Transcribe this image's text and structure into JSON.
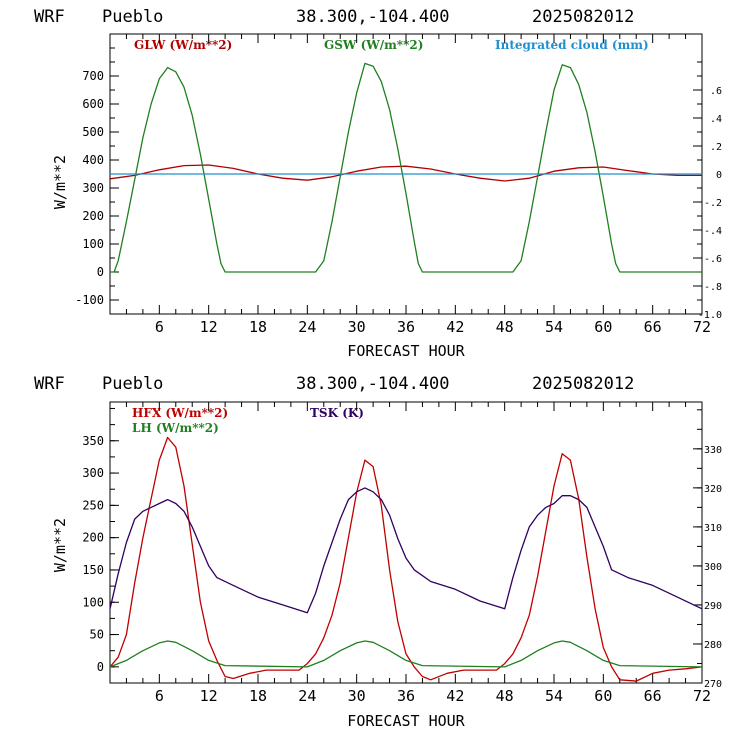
{
  "panels": [
    {
      "header": {
        "model": "WRF",
        "station": "Pueblo",
        "coords": "38.300,-104.400",
        "run": "2025082012"
      },
      "xlabel": "FORECAST HOUR",
      "ylabel": "W/m**2",
      "legend": [
        {
          "text": "GLW (W/m**2)",
          "color": "#b00000"
        },
        {
          "text": "GSW (W/m**2)",
          "color": "#208020"
        },
        {
          "text": "Integrated cloud (mm)",
          "color": "#1e90d0"
        }
      ],
      "left_ticks": [
        "-100",
        "0",
        "100",
        "200",
        "300",
        "400",
        "500",
        "600",
        "700"
      ],
      "right_ticks": [
        ".6",
        ".4",
        ".2",
        "0",
        "-.2",
        "-.4",
        "-.6",
        "-.8",
        "-1.0"
      ],
      "x_ticks": [
        "6",
        "12",
        "18",
        "24",
        "30",
        "36",
        "42",
        "48",
        "54",
        "60",
        "66",
        "72"
      ]
    },
    {
      "header": {
        "model": "WRF",
        "station": "Pueblo",
        "coords": "38.300,-104.400",
        "run": "2025082012"
      },
      "xlabel": "FORECAST HOUR",
      "ylabel": "W/m**2",
      "legend": [
        {
          "text": "HFX (W/m**2)",
          "color": "#c00000"
        },
        {
          "text": "LH  (W/m**2)",
          "color": "#208020"
        },
        {
          "text": "TSK (K)",
          "color": "#300060"
        }
      ],
      "left_ticks": [
        "0",
        "50",
        "100",
        "150",
        "200",
        "250",
        "300",
        "350"
      ],
      "right_ticks": [
        "270",
        "280",
        "290",
        "300",
        "310",
        "320",
        "330"
      ],
      "x_ticks": [
        "6",
        "12",
        "18",
        "24",
        "30",
        "36",
        "42",
        "48",
        "54",
        "60",
        "66",
        "72"
      ]
    }
  ],
  "chart_data": [
    {
      "type": "line",
      "xlabel": "FORECAST HOUR",
      "ylabel": "W/m**2",
      "xlim": [
        0,
        72
      ],
      "ylim": [
        -150,
        850
      ],
      "y2lim": [
        -1.0,
        1.0
      ],
      "series": [
        {
          "name": "GLW (W/m**2)",
          "color": "#b00000",
          "axis": "left",
          "x": [
            0,
            3,
            6,
            9,
            12,
            15,
            18,
            21,
            24,
            27,
            30,
            33,
            36,
            39,
            42,
            45,
            48,
            51,
            54,
            57,
            60,
            63,
            66,
            69,
            72
          ],
          "y": [
            333,
            345,
            365,
            380,
            382,
            370,
            350,
            335,
            328,
            340,
            360,
            375,
            378,
            368,
            350,
            335,
            325,
            335,
            360,
            372,
            375,
            362,
            350,
            345,
            345
          ]
        },
        {
          "name": "GSW (W/m**2)",
          "color": "#208020",
          "axis": "left",
          "x": [
            0,
            0.5,
            1,
            2,
            3,
            4,
            5,
            6,
            7,
            8,
            9,
            10,
            11,
            12,
            13,
            13.5,
            14,
            20,
            25,
            26,
            27,
            28,
            29,
            30,
            31,
            32,
            33,
            34,
            35,
            36,
            37,
            37.5,
            38,
            44,
            49,
            50,
            51,
            52,
            53,
            54,
            55,
            56,
            57,
            58,
            59,
            60,
            61,
            61.5,
            62,
            72
          ],
          "y": [
            0,
            0,
            40,
            180,
            330,
            480,
            600,
            690,
            730,
            715,
            660,
            560,
            420,
            260,
            100,
            30,
            0,
            0,
            0,
            40,
            180,
            340,
            500,
            640,
            745,
            735,
            680,
            580,
            440,
            280,
            110,
            30,
            0,
            0,
            0,
            40,
            180,
            340,
            500,
            650,
            740,
            730,
            670,
            570,
            430,
            270,
            100,
            30,
            0,
            0
          ]
        },
        {
          "name": "Integrated cloud (mm)",
          "color": "#1e90d0",
          "axis": "right",
          "x": [
            0,
            72
          ],
          "y": [
            0,
            0
          ]
        }
      ]
    },
    {
      "type": "line",
      "xlabel": "FORECAST HOUR",
      "ylabel": "W/m**2",
      "xlim": [
        0,
        72
      ],
      "ylim": [
        -25,
        410
      ],
      "y2lim": [
        270,
        342
      ],
      "series": [
        {
          "name": "HFX (W/m**2)",
          "color": "#c00000",
          "axis": "left",
          "x": [
            0,
            1,
            2,
            3,
            4,
            5,
            6,
            7,
            8,
            9,
            10,
            11,
            12,
            13,
            14,
            15,
            17,
            19,
            21,
            23,
            24,
            25,
            26,
            27,
            28,
            29,
            30,
            31,
            32,
            33,
            34,
            35,
            36,
            37,
            38,
            39,
            41,
            43,
            45,
            47,
            48,
            49,
            50,
            51,
            52,
            53,
            54,
            55,
            56,
            57,
            58,
            59,
            60,
            61,
            62,
            64,
            66,
            68,
            70,
            72
          ],
          "y": [
            0,
            15,
            50,
            130,
            200,
            260,
            320,
            355,
            340,
            280,
            190,
            100,
            40,
            10,
            -15,
            -18,
            -10,
            -5,
            -5,
            -5,
            5,
            20,
            45,
            80,
            130,
            200,
            270,
            320,
            310,
            250,
            150,
            70,
            20,
            0,
            -15,
            -20,
            -10,
            -5,
            -5,
            -5,
            5,
            20,
            45,
            80,
            140,
            210,
            280,
            330,
            320,
            260,
            170,
            90,
            30,
            0,
            -20,
            -22,
            -10,
            -5,
            -3,
            0
          ]
        },
        {
          "name": "LH  (W/m**2)",
          "color": "#208020",
          "axis": "left",
          "x": [
            0,
            2,
            4,
            6,
            7,
            8,
            10,
            12,
            14,
            24,
            26,
            28,
            30,
            31,
            32,
            34,
            36,
            38,
            48,
            50,
            52,
            54,
            55,
            56,
            58,
            60,
            62,
            72
          ],
          "y": [
            0,
            10,
            25,
            37,
            40,
            38,
            25,
            10,
            2,
            0,
            10,
            25,
            37,
            40,
            38,
            25,
            10,
            2,
            0,
            10,
            25,
            37,
            40,
            38,
            25,
            10,
            2,
            0
          ]
        },
        {
          "name": "TSK (K)",
          "color": "#300060",
          "axis": "right",
          "x": [
            0,
            1,
            2,
            3,
            4,
            5,
            6,
            7,
            8,
            9,
            10,
            11,
            12,
            13,
            15,
            18,
            21,
            24,
            25,
            26,
            27,
            28,
            29,
            30,
            31,
            32,
            33,
            34,
            35,
            36,
            37,
            39,
            42,
            45,
            48,
            49,
            50,
            51,
            52,
            53,
            54,
            55,
            56,
            57,
            58,
            59,
            60,
            61,
            63,
            66,
            69,
            72
          ],
          "y": [
            289,
            298,
            306,
            312,
            314,
            315,
            316,
            317,
            316,
            314,
            310,
            305,
            300,
            297,
            295,
            292,
            290,
            288,
            293,
            300,
            306,
            312,
            317,
            319,
            320,
            319,
            317,
            313,
            307,
            302,
            299,
            296,
            294,
            291,
            289,
            297,
            304,
            310,
            313,
            315,
            316,
            318,
            318,
            317,
            315,
            310,
            305,
            299,
            297,
            295,
            292,
            289
          ]
        }
      ]
    }
  ]
}
